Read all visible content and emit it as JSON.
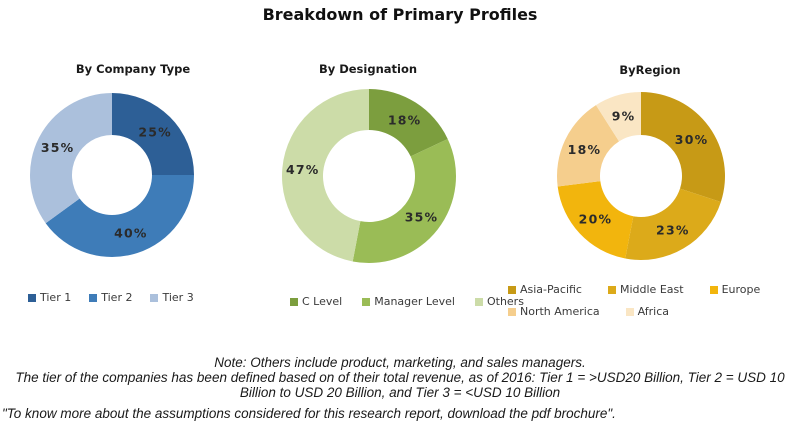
{
  "title": "Breakdown of Primary Profiles",
  "chart_data": [
    {
      "type": "pie",
      "donut": true,
      "title": "By Company Type",
      "labels": [
        "Tier 1",
        "Tier 2",
        "Tier 3"
      ],
      "values": [
        25,
        40,
        35
      ],
      "data_labels": [
        "25%",
        "40%",
        "35%"
      ],
      "colors": [
        "#2d5f96",
        "#3e7cb8",
        "#abc0dc"
      ],
      "legend_position": "bottom",
      "legend_rows": [
        [
          "Tier 1",
          "Tier 2",
          "Tier 3"
        ]
      ]
    },
    {
      "type": "pie",
      "donut": true,
      "title": "By Designation",
      "labels": [
        "C Level",
        "Manager Level",
        "Others"
      ],
      "values": [
        18,
        35,
        47
      ],
      "data_labels": [
        "18%",
        "35%",
        "47%"
      ],
      "colors": [
        "#7c9e3e",
        "#9abc56",
        "#ccdca8"
      ],
      "legend_position": "bottom",
      "legend_rows": [
        [
          "C Level",
          "Manager Level",
          "Others"
        ]
      ]
    },
    {
      "type": "pie",
      "donut": true,
      "title": "ByRegion",
      "labels": [
        "Asia-Pacific",
        "Middle East",
        "Europe",
        "North America",
        "Africa"
      ],
      "values": [
        30,
        23,
        20,
        18,
        9
      ],
      "data_labels": [
        "30%",
        "23%",
        "20%",
        "18%",
        "9%"
      ],
      "colors": [
        "#c79a16",
        "#dcaa1a",
        "#f2b50d",
        "#f5ce8d",
        "#fae6c4"
      ],
      "legend_position": "bottom",
      "legend_rows": [
        [
          "Asia-Pacific",
          "Middle East",
          "Europe"
        ],
        [
          "North America",
          "Africa"
        ]
      ]
    }
  ],
  "notes": {
    "line1": "Note: Others include product, marketing, and sales managers.",
    "line2": "The tier of the companies has been defined based on of their total revenue, as of 2016: Tier 1 = >USD20 Billion, Tier 2 = USD 10",
    "line3": "Billion to USD 20 Billion, and Tier 3 = <USD 10 Billion",
    "line4": "\"To know more about the assumptions considered for this research report, download the pdf brochure\"."
  }
}
